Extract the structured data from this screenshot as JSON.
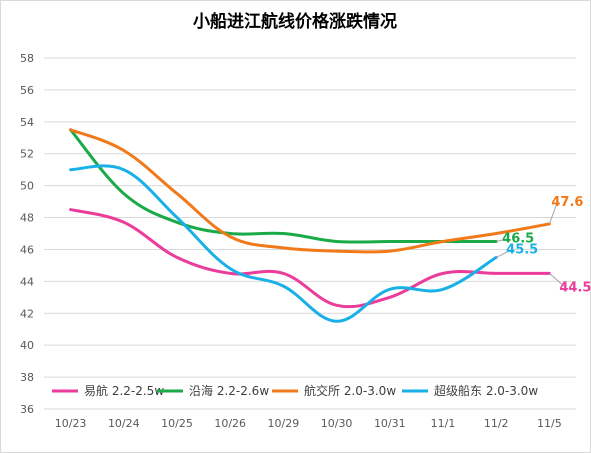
{
  "chart_data": {
    "type": "line",
    "title": "小船进江航线价格涨跌情况",
    "xlabel": "",
    "ylabel": "",
    "categories": [
      "10/23",
      "10/24",
      "10/25",
      "10/26",
      "10/29",
      "10/30",
      "10/31",
      "11/1",
      "11/2",
      "11/5"
    ],
    "ylim": [
      36,
      58
    ],
    "yticks": [
      36,
      38,
      40,
      42,
      44,
      46,
      48,
      50,
      52,
      54,
      56,
      58
    ],
    "grid": true,
    "legend_position": "bottom-left",
    "series": [
      {
        "name": "易航 2.2-2.5w",
        "color": "#ec3c9b",
        "values": [
          48.5,
          47.7,
          45.5,
          44.5,
          44.5,
          42.5,
          43.0,
          44.5,
          44.5,
          44.5
        ],
        "end_label": "44.5"
      },
      {
        "name": "沿海 2.2-2.6w",
        "color": "#1aaa47",
        "values": [
          53.5,
          49.5,
          47.7,
          47.0,
          47.0,
          46.5,
          46.5,
          46.5,
          46.5,
          null
        ],
        "end_label": "46.5"
      },
      {
        "name": "航交所 2.0-3.0w",
        "color": "#f07a1a",
        "values": [
          53.5,
          52.2,
          49.5,
          46.8,
          46.1,
          45.9,
          45.9,
          46.5,
          47.0,
          47.6
        ],
        "end_label": "47.6"
      },
      {
        "name": "超级船东 2.0-3.0w",
        "color": "#19b0e8",
        "values": [
          51.0,
          51.0,
          48.0,
          44.8,
          43.7,
          41.5,
          43.5,
          43.5,
          45.5,
          null
        ],
        "end_label": "45.5"
      }
    ]
  }
}
